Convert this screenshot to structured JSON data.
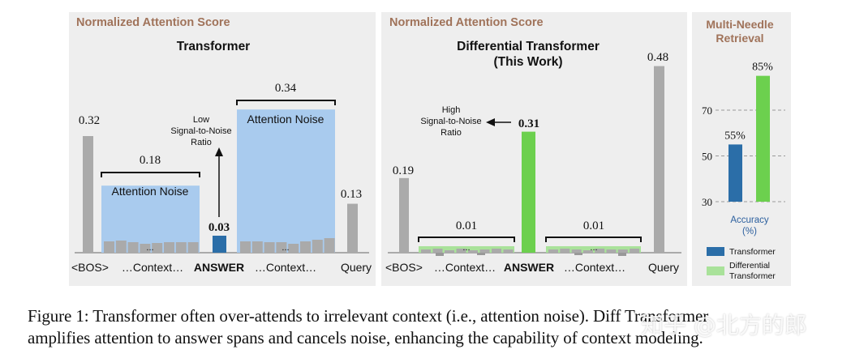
{
  "colors": {
    "panel_bg": "#eeeeee",
    "header": "#a0735a",
    "gray_bar": "#aaaaaa",
    "noise_box": "#a9cbee",
    "blue_answer": "#2b6ea8",
    "green": "#6cd04e",
    "light_green": "#a9e29a",
    "grid": "#999999"
  },
  "left_panel": {
    "header": "Normalized Attention Score",
    "title": "Transformer",
    "noise_label_1": "Attention Noise",
    "noise_label_2": "Attention Noise",
    "annotation": [
      "Low",
      "Signal-to-Noise",
      "Ratio"
    ],
    "dots": "...",
    "x_labels": [
      "<BOS>",
      "…Context…",
      "ANSWER",
      "…Context…",
      "Query"
    ]
  },
  "middle_panel": {
    "header": "Normalized Attention Score",
    "title_line1": "Differential Transformer",
    "title_line2": "(This Work)",
    "annotation": [
      "High",
      "Signal-to-Noise",
      "Ratio"
    ],
    "dots": "...",
    "x_labels": [
      "<BOS>",
      "…Context…",
      "ANSWER",
      "…Context…",
      "Query"
    ]
  },
  "right_panel": {
    "title_line1": "Multi-Needle",
    "title_line2": "Retrieval",
    "xlabel_line1": "Accuracy",
    "xlabel_line2": "(%)",
    "legend": [
      "Transformer",
      "Differential",
      "Transformer"
    ]
  },
  "chart_data": [
    {
      "type": "bar",
      "title": "Transformer",
      "subtitle": "Normalized Attention Score",
      "categories": [
        "<BOS>",
        "…Context…",
        "ANSWER",
        "…Context…",
        "Query"
      ],
      "values": [
        0.32,
        0.18,
        0.03,
        0.34,
        0.13
      ],
      "value_labels": [
        "0.32",
        "0.18",
        "0.03",
        "0.34",
        "0.13"
      ]
    },
    {
      "type": "bar",
      "title": "Differential Transformer (This Work)",
      "subtitle": "Normalized Attention Score",
      "categories": [
        "<BOS>",
        "…Context…",
        "ANSWER",
        "…Context…",
        "Query"
      ],
      "values": [
        0.19,
        0.01,
        0.31,
        0.01,
        0.48
      ],
      "value_labels": [
        "0.19",
        "0.01",
        "0.31",
        "0.01",
        "0.48"
      ]
    },
    {
      "type": "bar",
      "title": "Multi-Needle Retrieval",
      "xlabel": "Accuracy (%)",
      "categories": [
        "Transformer",
        "Differential Transformer"
      ],
      "values": [
        55,
        85
      ],
      "value_labels": [
        "55%",
        "85%"
      ],
      "yticks": [
        "30",
        "50",
        "70"
      ],
      "ylim": [
        30,
        90
      ],
      "grid": true
    }
  ],
  "caption": {
    "line1": "Figure 1: Transformer often over-attends to irrelevant context (i.e., attention noise). Diff Transformer",
    "line2": "amplifies attention to answer spans and cancels noise, enhancing the capability of context modeling."
  },
  "watermark": "知乎 @北方的郎"
}
